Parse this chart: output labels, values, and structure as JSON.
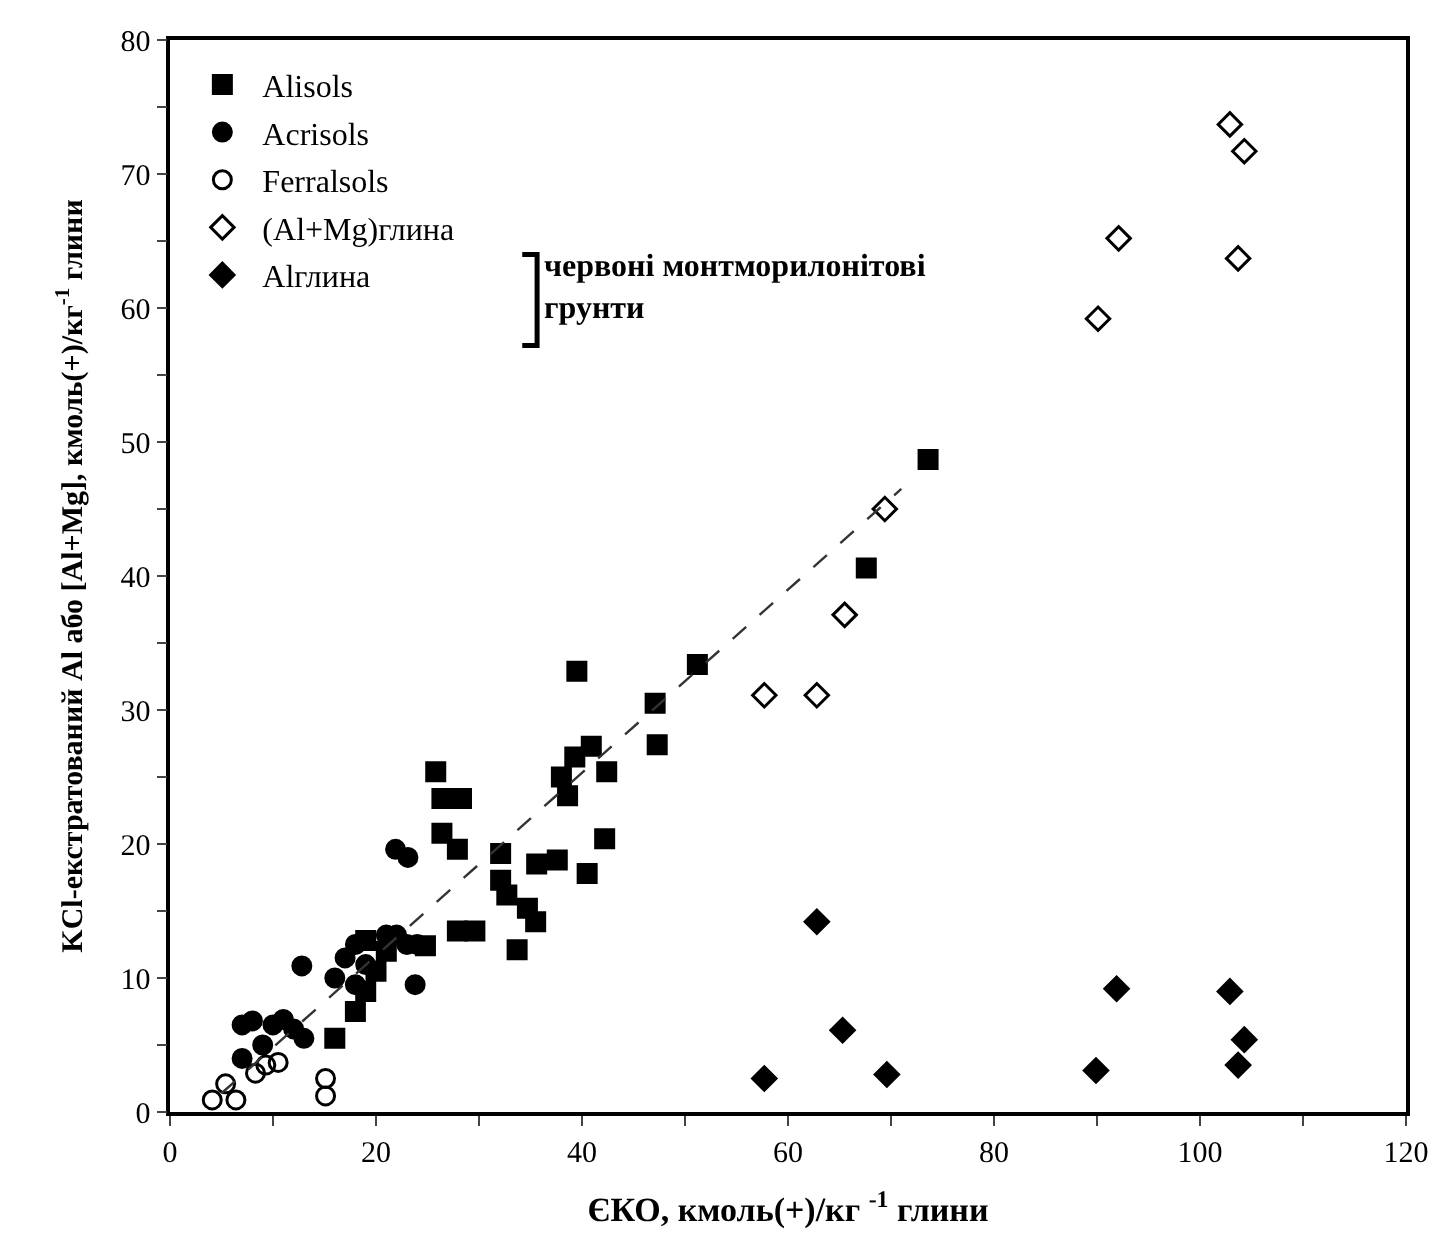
{
  "chart_data": {
    "type": "scatter",
    "xlabel": "ЄКО, кмоль(+)/кг $^{-1}$ глини",
    "ylabel": "KCl-екстратований Al або [Al+Mg], кмоль(+)/кг$^{-1}$ глини",
    "xlim": [
      0,
      120
    ],
    "ylim": [
      0,
      80
    ],
    "xticks": [
      0,
      {
        "value": 10,
        "label": null
      },
      20,
      {
        "value": 30,
        "label": null
      },
      40,
      {
        "value": 50,
        "label": null
      },
      60,
      {
        "value": 70,
        "label": null
      },
      80,
      {
        "value": 90,
        "label": null
      },
      100,
      {
        "value": 110,
        "label": null
      },
      120
    ],
    "yticks": [
      0,
      {
        "value": 5,
        "label": null
      },
      10,
      {
        "value": 15,
        "label": null
      },
      20,
      {
        "value": 25,
        "label": null
      },
      30,
      {
        "value": 35,
        "label": null
      },
      40,
      {
        "value": 45,
        "label": null
      },
      50,
      {
        "value": 55,
        "label": null
      },
      60,
      {
        "value": 65,
        "label": null
      },
      70,
      {
        "value": 75,
        "label": null
      },
      80
    ],
    "legend": "top left",
    "annotations": [
      "червоні монтморилонітові\nгрунти"
    ],
    "series": [
      {
        "name": "Alisols",
        "color": "#000000",
        "marker": "square",
        "x": [
          73.6,
          67.6,
          39.5,
          51.2,
          47.1,
          47.3,
          40.9,
          39.3,
          42.4,
          38.0,
          38.6,
          25.8,
          26.4,
          28.3,
          26.4,
          27.9,
          42.2,
          40.5,
          37.6,
          35.6,
          32.1,
          32.1,
          32.7,
          34.7,
          35.5,
          29.6,
          33.7,
          27.9,
          24.8,
          19,
          20,
          18,
          16,
          21,
          19
        ],
        "values": [
          48.7,
          40.6,
          32.9,
          33.4,
          30.5,
          27.4,
          27.3,
          26.5,
          25.4,
          25.0,
          23.6,
          25.4,
          23.4,
          23.4,
          20.8,
          19.6,
          20.4,
          17.8,
          18.8,
          18.5,
          19.3,
          17.3,
          16.2,
          15.2,
          14.2,
          13.5,
          12.1,
          13.5,
          12.4,
          9,
          10.5,
          7.5,
          5.5,
          12,
          12.8
        ]
      },
      {
        "name": "Acrisols",
        "color": "#000000",
        "marker": "circle",
        "x": [
          21.9,
          23.1,
          23.8,
          12.8,
          8,
          10,
          12,
          18,
          19,
          21,
          18,
          16,
          13,
          9,
          7,
          7,
          22,
          17,
          11,
          24,
          23
        ],
        "values": [
          19.6,
          19.0,
          9.5,
          10.9,
          6.8,
          6.5,
          6.2,
          9.5,
          11,
          13.2,
          12.5,
          10,
          5.5,
          5,
          4,
          6.5,
          13.2,
          11.5,
          6.9,
          12.5,
          12.5
        ]
      },
      {
        "name": "Ferralsols",
        "color": "#000000",
        "marker": "circle-open",
        "x": [
          4.1,
          6.4,
          8.3,
          10.5,
          15.1,
          15.1,
          9.3,
          5.4
        ],
        "values": [
          0.9,
          0.9,
          2.9,
          3.7,
          2.5,
          1.2,
          3.5,
          2.1
        ]
      },
      {
        "name": "(Al+Mg)глина",
        "color": "#000000",
        "marker": "diamond-open",
        "x": [
          69.4,
          102.9,
          104.3,
          103.7,
          92.1,
          90.1,
          65.5,
          62.8,
          57.7
        ],
        "values": [
          45.0,
          73.7,
          71.7,
          63.7,
          65.2,
          59.2,
          37.1,
          31.1,
          31.1
        ]
      },
      {
        "name": "Alглина",
        "color": "#000000",
        "marker": "diamond",
        "x": [
          62.8,
          65.3,
          69.6,
          57.7,
          91.9,
          89.9,
          102.9,
          104.3,
          103.7
        ],
        "values": [
          14.2,
          6.1,
          2.8,
          2.5,
          9.2,
          3.1,
          9.0,
          5.4,
          3.5
        ]
      },
      {
        "type": "line",
        "color": "#333333",
        "line_style": "dashed",
        "x": [
          5,
          71
        ],
        "values": [
          1.4,
          46.5
        ]
      }
    ]
  }
}
